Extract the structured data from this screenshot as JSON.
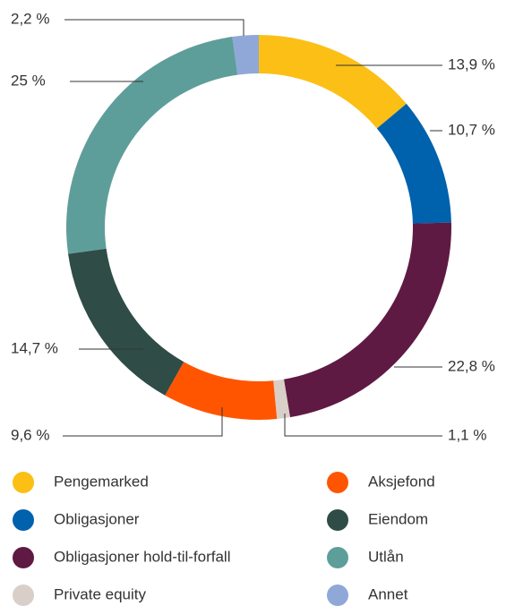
{
  "chart_data": {
    "type": "donut",
    "series": [
      {
        "name": "Pengemarked",
        "color": "#fbbf16",
        "values": [
          13.9
        ],
        "value_labels": [
          "13,9 %"
        ]
      },
      {
        "name": "Obligasjoner",
        "color": "#0061ad",
        "values": [
          10.7
        ],
        "value_labels": [
          "10,7 %"
        ]
      },
      {
        "name": "Obligasjoner hold-til-forfall",
        "color": "#5e1a43",
        "values": [
          22.8
        ],
        "value_labels": [
          "22,8 %"
        ]
      },
      {
        "name": "Private equity",
        "color": "#d9cfc8",
        "values": [
          1.1
        ],
        "value_labels": [
          "1,1 %"
        ]
      },
      {
        "name": "Aksjefond",
        "color": "#ff5500",
        "values": [
          9.6
        ],
        "value_labels": [
          "9,6 %"
        ]
      },
      {
        "name": "Eiendom",
        "color": "#2f4c47",
        "values": [
          14.7
        ],
        "value_labels": [
          "14,7 %"
        ]
      },
      {
        "name": "Utlån",
        "color": "#5e9e9a",
        "values": [
          25
        ],
        "value_labels": [
          "25 %"
        ]
      },
      {
        "name": "Annet",
        "color": "#8fa8d8",
        "values": [
          2.2
        ],
        "value_labels": [
          "2,2 %"
        ]
      }
    ]
  }
}
